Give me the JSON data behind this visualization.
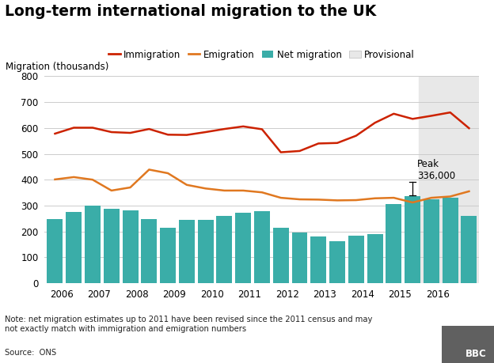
{
  "title": "Long-term international migration to the UK",
  "ylabel": "Migration (thousands)",
  "note": "Note: net migration estimates up to 2011 have been revised since the 2011 census and may\nnot exactly match with immigration and emigration numbers",
  "source": "Source:  ONS",
  "provisional_start": 2015.5,
  "bar_positions": [
    2005.83,
    2006.33,
    2006.83,
    2007.33,
    2007.83,
    2008.33,
    2008.83,
    2009.33,
    2009.83,
    2010.33,
    2010.83,
    2011.33,
    2011.83,
    2012.33,
    2012.83,
    2013.33,
    2013.83,
    2014.33,
    2014.83,
    2015.33,
    2015.83,
    2016.33,
    2016.83
  ],
  "bar_heights": [
    248,
    275,
    300,
    289,
    280,
    248,
    215,
    245,
    244,
    260,
    271,
    278,
    215,
    195,
    180,
    163,
    185,
    190,
    307,
    336,
    323,
    330,
    260
  ],
  "imm_x": [
    2005.83,
    2006.33,
    2006.83,
    2007.33,
    2007.83,
    2008.33,
    2008.83,
    2009.33,
    2009.83,
    2010.33,
    2010.83,
    2011.33,
    2011.83,
    2012.33,
    2012.83,
    2013.33,
    2013.83,
    2014.33,
    2014.83,
    2015.33,
    2015.83,
    2016.33,
    2016.83
  ],
  "imm_y": [
    578,
    601,
    601,
    584,
    581,
    596,
    574,
    573,
    584,
    596,
    606,
    595,
    506,
    511,
    540,
    542,
    570,
    620,
    655,
    635,
    647,
    660,
    599
  ],
  "emi_x": [
    2005.83,
    2006.33,
    2006.83,
    2007.33,
    2007.83,
    2008.33,
    2008.83,
    2009.33,
    2009.83,
    2010.33,
    2010.83,
    2011.33,
    2011.83,
    2012.33,
    2012.83,
    2013.33,
    2013.83,
    2014.33,
    2014.83,
    2015.33,
    2015.83,
    2016.33,
    2016.83
  ],
  "emi_y": [
    401,
    410,
    400,
    358,
    370,
    439,
    425,
    380,
    366,
    358,
    358,
    351,
    330,
    324,
    323,
    320,
    321,
    328,
    330,
    312,
    330,
    335,
    355
  ],
  "bar_color": "#3aada8",
  "immigration_color": "#cc2200",
  "emigration_color": "#e07820",
  "provisional_color": "#e8e8e8",
  "background_color": "#ffffff",
  "grid_color": "#cccccc",
  "ylim": [
    0,
    800
  ],
  "yticks": [
    0,
    100,
    200,
    300,
    400,
    500,
    600,
    700,
    800
  ],
  "xticks": [
    2006,
    2007,
    2008,
    2009,
    2010,
    2011,
    2012,
    2013,
    2014,
    2015,
    2016
  ],
  "xlim": [
    2005.55,
    2017.1
  ],
  "bar_width": 0.42,
  "peak_bar_x": 2015.33,
  "peak_bar_y": 336,
  "peak_label": "Peak\n336,000"
}
